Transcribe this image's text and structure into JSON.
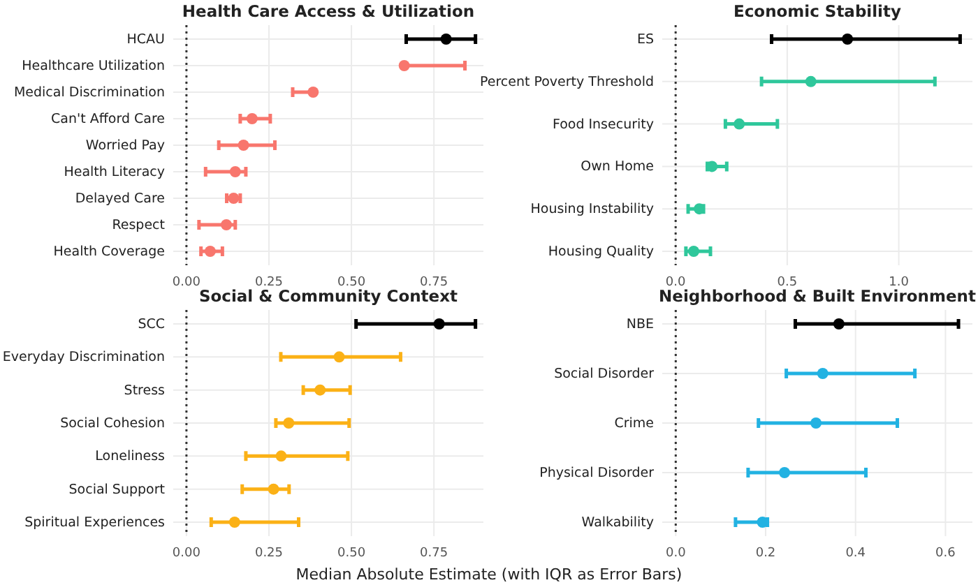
{
  "chart_data": [
    {
      "type": "scatter",
      "title": "Health Care Access & Utilization",
      "categories": [
        "HCAU",
        "Healthcare Utilization",
        "Medical Discrimination",
        "Can't Afford Care",
        "Worried Pay",
        "Health Literacy",
        "Delayed Care",
        "Respect",
        "Health Coverage"
      ],
      "values": [
        0.787,
        0.66,
        0.384,
        0.199,
        0.173,
        0.148,
        0.143,
        0.121,
        0.072
      ],
      "errors": [
        [
          0.666,
          0.876
        ],
        [
          0.66,
          0.844
        ],
        [
          0.322,
          0.384
        ],
        [
          0.163,
          0.254
        ],
        [
          0.098,
          0.268
        ],
        [
          0.058,
          0.18
        ],
        [
          0.122,
          0.163
        ],
        [
          0.038,
          0.148
        ],
        [
          0.044,
          0.109
        ]
      ],
      "colors": [
        "#000000",
        "#f8766d",
        "#f8766d",
        "#f8766d",
        "#f8766d",
        "#f8766d",
        "#f8766d",
        "#f8766d",
        "#f8766d"
      ],
      "orientation": "horizontal",
      "xlim": [
        -0.04,
        0.9
      ],
      "xticks": [
        {
          "value": 0,
          "label": "0.00"
        },
        {
          "value": 0.25,
          "label": "0.25"
        },
        {
          "value": 0.5,
          "label": "0.50"
        },
        {
          "value": 0.75,
          "label": "0.75"
        }
      ],
      "ref_lines": [
        {
          "axis": "x",
          "value": 0,
          "line_style": "dotted"
        }
      ],
      "grid": true,
      "marker": "circle"
    },
    {
      "type": "scatter",
      "title": "Economic Stability",
      "categories": [
        "ES",
        "Percent Poverty Threshold",
        "Food Insecurity",
        "Own Home",
        "Housing Instability",
        "Housing Quality"
      ],
      "values": [
        0.77,
        0.606,
        0.285,
        0.163,
        0.106,
        0.081
      ],
      "errors": [
        [
          0.43,
          1.275
        ],
        [
          0.385,
          1.162
        ],
        [
          0.223,
          0.456
        ],
        [
          0.142,
          0.229
        ],
        [
          0.056,
          0.125
        ],
        [
          0.046,
          0.156
        ]
      ],
      "colors": [
        "#000000",
        "#2fc79b",
        "#2fc79b",
        "#2fc79b",
        "#2fc79b",
        "#2fc79b"
      ],
      "orientation": "horizontal",
      "xlim": [
        -0.06,
        1.33
      ],
      "xticks": [
        {
          "value": 0,
          "label": "0.0"
        },
        {
          "value": 0.5,
          "label": "0.5"
        },
        {
          "value": 1,
          "label": "1.0"
        }
      ],
      "ref_lines": [
        {
          "axis": "x",
          "value": 0,
          "line_style": "dotted"
        }
      ],
      "grid": true,
      "marker": "circle"
    },
    {
      "type": "scatter",
      "title": "Social & Community Context",
      "categories": [
        "SCC",
        "Everyday Discrimination",
        "Stress",
        "Social Cohesion",
        "Loneliness",
        "Social Support",
        "Spiritual Experiences"
      ],
      "values": [
        0.766,
        0.463,
        0.405,
        0.31,
        0.287,
        0.264,
        0.146
      ],
      "errors": [
        [
          0.514,
          0.876
        ],
        [
          0.286,
          0.649
        ],
        [
          0.354,
          0.496
        ],
        [
          0.271,
          0.493
        ],
        [
          0.18,
          0.489
        ],
        [
          0.169,
          0.311
        ],
        [
          0.075,
          0.34
        ]
      ],
      "colors": [
        "#000000",
        "#fbb116",
        "#fbb116",
        "#fbb116",
        "#fbb116",
        "#fbb116",
        "#fbb116"
      ],
      "orientation": "horizontal",
      "xlim": [
        -0.04,
        0.9
      ],
      "xticks": [
        {
          "value": 0,
          "label": "0.00"
        },
        {
          "value": 0.25,
          "label": "0.25"
        },
        {
          "value": 0.5,
          "label": "0.50"
        },
        {
          "value": 0.75,
          "label": "0.75"
        }
      ],
      "ref_lines": [
        {
          "axis": "x",
          "value": 0,
          "line_style": "dotted"
        }
      ],
      "grid": true,
      "marker": "circle"
    },
    {
      "type": "scatter",
      "title": "Neighborhood & Built Environment",
      "xlabel": "Median Absolute Estimate (with IQR as Error Bars)",
      "categories": [
        "NBE",
        "Social Disorder",
        "Crime",
        "Physical Disorder",
        "Walkability"
      ],
      "values": [
        0.363,
        0.327,
        0.312,
        0.242,
        0.193
      ],
      "errors": [
        [
          0.266,
          0.629
        ],
        [
          0.246,
          0.532
        ],
        [
          0.184,
          0.493
        ],
        [
          0.161,
          0.423
        ],
        [
          0.133,
          0.204
        ]
      ],
      "colors": [
        "#000000",
        "#22b2e2",
        "#22b2e2",
        "#22b2e2",
        "#22b2e2"
      ],
      "orientation": "horizontal",
      "xlim": [
        -0.03,
        0.66
      ],
      "xticks": [
        {
          "value": 0,
          "label": "0.0"
        },
        {
          "value": 0.2,
          "label": "0.2"
        },
        {
          "value": 0.4,
          "label": "0.4"
        },
        {
          "value": 0.6,
          "label": "0.6"
        }
      ],
      "ref_lines": [
        {
          "axis": "x",
          "value": 0,
          "line_style": "dotted"
        }
      ],
      "grid": true,
      "marker": "circle"
    }
  ]
}
